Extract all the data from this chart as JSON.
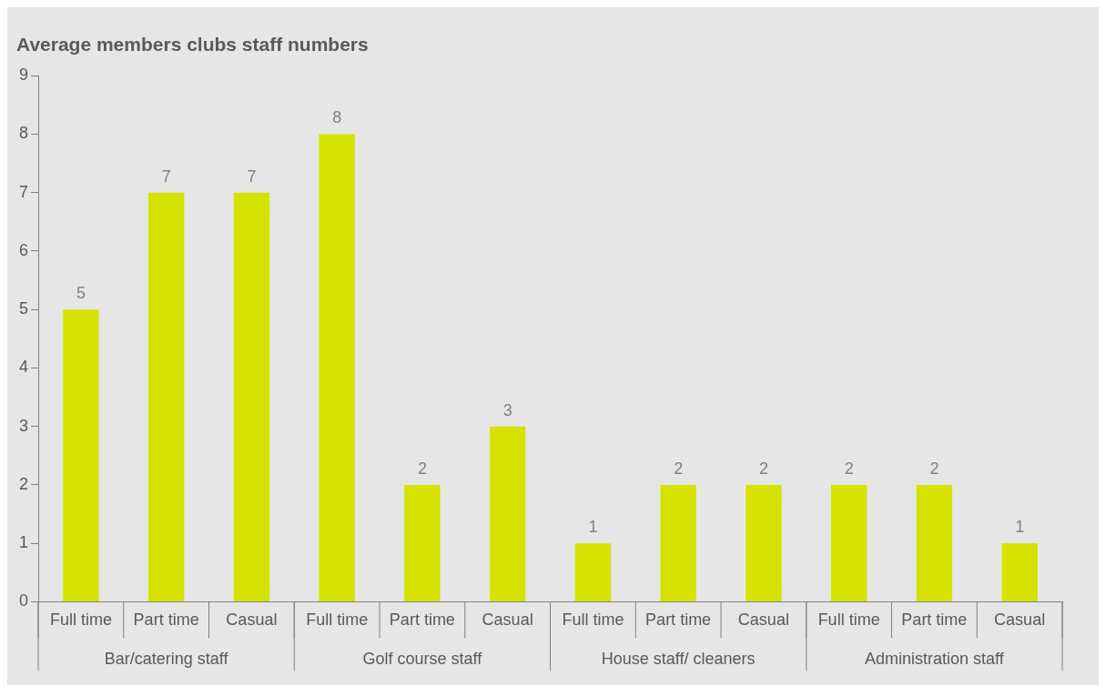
{
  "chart_data": {
    "type": "bar",
    "title": "Average members clubs staff numbers",
    "categories": [
      "Full time",
      "Part time",
      "Casual",
      "Full time",
      "Part time",
      "Casual",
      "Full time",
      "Part time",
      "Casual",
      "Full time",
      "Part time",
      "Casual"
    ],
    "values": [
      5,
      7,
      7,
      8,
      2,
      3,
      1,
      2,
      2,
      2,
      2,
      1
    ],
    "color": "#d4e300",
    "ylim": [
      0,
      9
    ],
    "yticks": [
      0,
      1,
      2,
      3,
      4,
      5,
      6,
      7,
      8,
      9
    ],
    "grid": false,
    "legend": false,
    "data_labels": true,
    "annotations": [
      "Bar/catering staff",
      "Golf course staff",
      "House staff/ cleaners",
      "Administration staff"
    ]
  }
}
